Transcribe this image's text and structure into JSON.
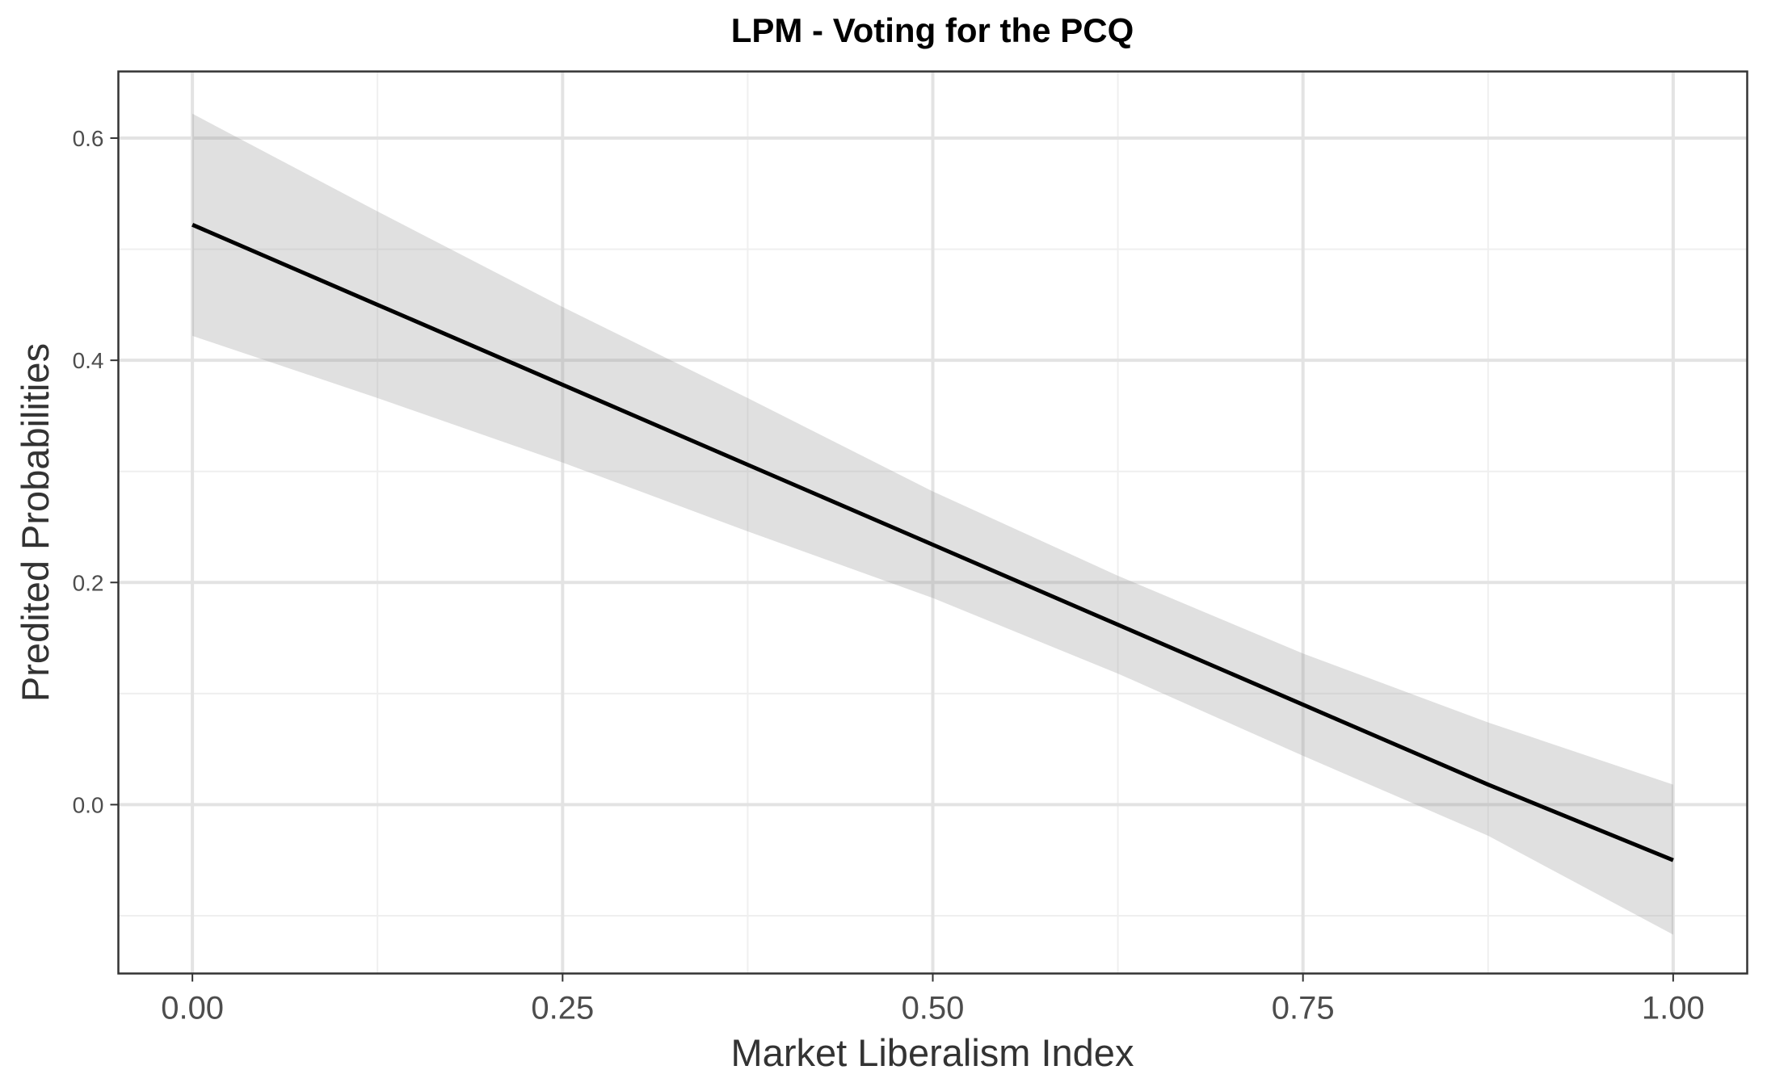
{
  "chart_data": {
    "type": "line",
    "title": "LPM - Voting for the PCQ",
    "xlabel": "Market Liberalism Index",
    "ylabel": "Predited Probabilities",
    "xlim": [
      -0.05,
      1.05
    ],
    "ylim": [
      -0.152,
      0.66
    ],
    "grid": true,
    "x_ticks": [
      0.0,
      0.25,
      0.5,
      0.75,
      1.0
    ],
    "x_tick_labels": [
      "0.00",
      "0.25",
      "0.50",
      "0.75",
      "1.00"
    ],
    "y_ticks": [
      0.0,
      0.2,
      0.4,
      0.6
    ],
    "y_tick_labels": [
      "0.0",
      "0.2",
      "0.4",
      "0.6"
    ],
    "series": [
      {
        "x": [
          0.0,
          0.125,
          0.25,
          0.375,
          0.5,
          0.625,
          0.75,
          0.875,
          1.0
        ],
        "y": [
          0.522,
          0.45,
          0.378,
          0.306,
          0.234,
          0.162,
          0.09,
          0.018,
          -0.05
        ],
        "ci_lower": [
          0.422,
          0.366,
          0.308,
          0.246,
          0.186,
          0.118,
          0.044,
          -0.028,
          -0.117
        ],
        "ci_upper": [
          0.622,
          0.534,
          0.448,
          0.366,
          0.282,
          0.206,
          0.136,
          0.074,
          0.018
        ]
      }
    ],
    "colors": {
      "line": "#000000",
      "ribbon": "#999999",
      "grid": "#ebebeb",
      "panel_border": "#333333"
    }
  }
}
